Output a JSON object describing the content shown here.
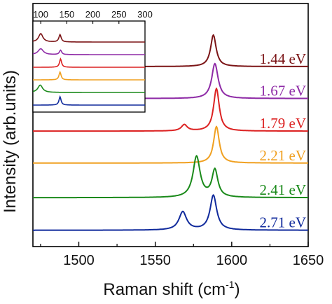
{
  "chart_data": [
    {
      "id": "main",
      "type": "line",
      "xlabel": "Raman shift (cm",
      "xlabel_sup": "-1",
      "xlabel_end": ")",
      "ylabel": "Intensity (arb.units)",
      "xlim": [
        1470,
        1650
      ],
      "xticks": [
        1500,
        1550,
        1600,
        1650
      ],
      "y_tick_labels": false,
      "grid": false,
      "series": [
        {
          "name": "1.44 eV",
          "color": "#7b1416",
          "offset": 5.2,
          "peaks": [
            [
              1588,
              0.95,
              2.2
            ]
          ]
        },
        {
          "name": "1.67 eV",
          "color": "#8e2aa6",
          "offset": 4.24,
          "peaks": [
            [
              1589,
              1.05,
              2.5
            ]
          ]
        },
        {
          "name": "1.79 eV",
          "color": "#dc2222",
          "offset": 3.26,
          "peaks": [
            [
              1569,
              0.19,
              2.3
            ],
            [
              1590,
              1.28,
              2.2
            ]
          ]
        },
        {
          "name": "2.21 eV",
          "color": "#f0a020",
          "offset": 2.3,
          "peaks": [
            [
              1590,
              1.1,
              2.2
            ]
          ]
        },
        {
          "name": "2.41 eV",
          "color": "#1a8a1a",
          "offset": 1.26,
          "peaks": [
            [
              1577,
              1.23,
              2.8
            ],
            [
              1589,
              0.82,
              2.3
            ]
          ]
        },
        {
          "name": "2.71 eV",
          "color": "#102a9c",
          "offset": 0.28,
          "peaks": [
            [
              1568,
              0.55,
              3.0
            ],
            [
              1588,
              1.05,
              2.6
            ]
          ]
        }
      ]
    },
    {
      "id": "inset",
      "type": "line",
      "xlim": [
        85,
        300
      ],
      "xticks": [
        100,
        150,
        200,
        250,
        300
      ],
      "y_tick_labels": false,
      "grid": false,
      "series": [
        {
          "color": "#7b1416",
          "offset": 5,
          "peaks": [
            [
              100,
              0.85,
              5
            ],
            [
              137,
              0.75,
              2.6
            ]
          ]
        },
        {
          "color": "#8e2aa6",
          "offset": 4,
          "peaks": [
            [
              100,
              0.6,
              6
            ],
            [
              138,
              0.45,
              2.6
            ]
          ]
        },
        {
          "color": "#dc2222",
          "offset": 3,
          "peaks": [
            [
              138,
              0.85,
              2.4
            ]
          ]
        },
        {
          "color": "#f0a020",
          "offset": 2,
          "peaks": [
            [
              137,
              0.8,
              2.4
            ]
          ]
        },
        {
          "color": "#1a8a1a",
          "offset": 1,
          "peaks": [
            [
              99,
              0.75,
              5.5
            ]
          ]
        },
        {
          "color": "#102a9c",
          "offset": 0,
          "peaks": [
            [
              137,
              0.85,
              2.4
            ]
          ]
        }
      ]
    }
  ]
}
